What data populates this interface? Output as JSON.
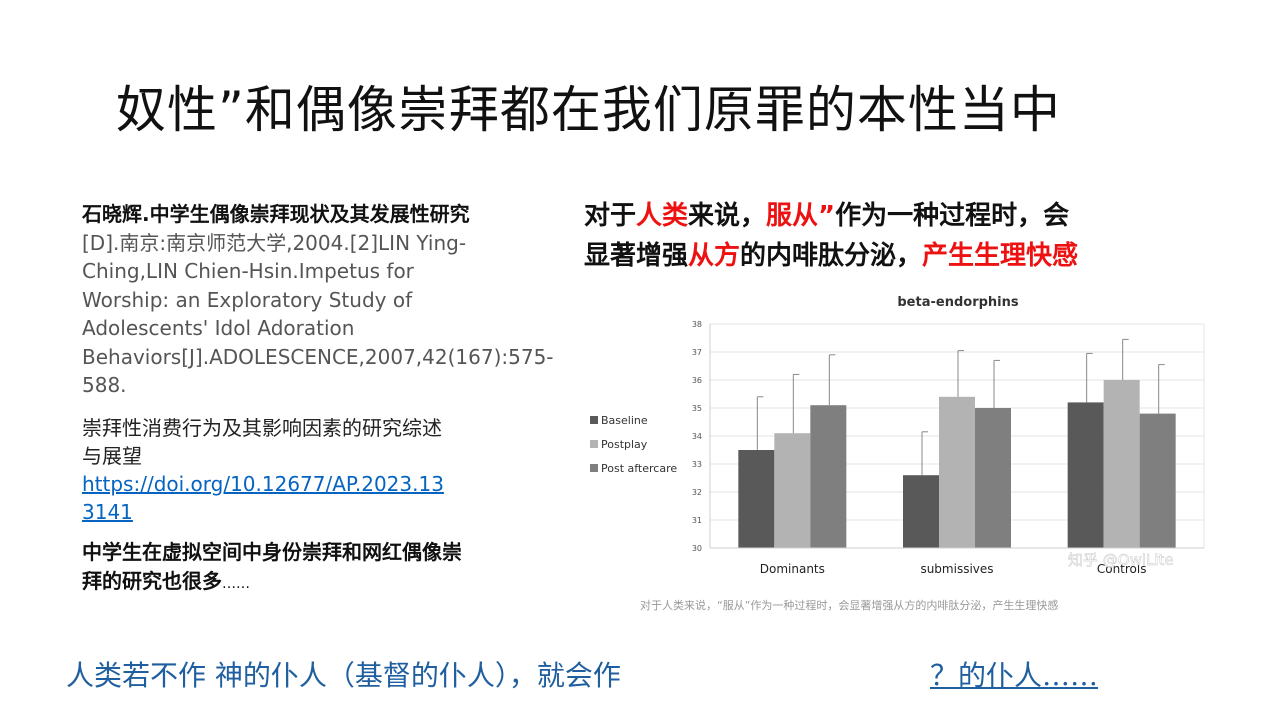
{
  "title": "奴性”和偶像崇拜都在我们原罪的本性当中",
  "references": {
    "ref1_bold": "石晓辉.中学生偶像崇拜现状及其发展性研究",
    "ref1_rest": "[D].南京:南京师范大学,2004.[2]LIN Ying-Ching,LIN Chien-Hsin.Impetus for Worship: an Exploratory Study of Adolescents' Idol Adoration Behaviors[J].ADOLESCENCE,2007,42(167):575-588.",
    "ref2_text": "崇拜性消费行为及其影响因素的研究综述与展望",
    "ref2_link": "https://doi.org/10.12677/AP.2023.133141",
    "ref3_text": "中学生在虚拟空间中身份崇拜和网红偶像崇拜的研究也很多",
    "ref3_dots": "……"
  },
  "headline": {
    "p1": "对于",
    "p2": "人类",
    "p3": "来说，",
    "p4": "服从”",
    "p5": "作为一种过程时，会",
    "p6": "显著增强",
    "p7": "从方",
    "p8": "的内啡肽分泌，",
    "p9": "产生生理快感"
  },
  "chart_caption": "对于人类来说，“服从”作为一种过程时，会显著增强从方的内啡肽分泌，产生生理快感",
  "watermark": "知乎 @OwlLite",
  "bottom": {
    "left_text": "人类若不作 神的仆人（基督的仆人），就会作",
    "q_mark": "？",
    "right_text": "的仆人……"
  },
  "chart_data": {
    "type": "bar",
    "title": "beta-endorphins",
    "categories": [
      "Dominants",
      "submissives",
      "Controls"
    ],
    "series": [
      {
        "name": "Baseline",
        "values": [
          33.5,
          32.6,
          35.2
        ],
        "errors": [
          1.9,
          1.55,
          1.75
        ],
        "color": "#595959"
      },
      {
        "name": "Postplay",
        "values": [
          34.1,
          35.4,
          36.0
        ],
        "errors": [
          2.1,
          1.65,
          1.45
        ],
        "color": "#b3b3b3"
      },
      {
        "name": "Post aftercare",
        "values": [
          35.1,
          35.0,
          34.8
        ],
        "errors": [
          1.8,
          1.7,
          1.75
        ],
        "color": "#7f7f7f"
      }
    ],
    "ylim": [
      30,
      38
    ],
    "yticks": [
      30,
      31,
      32,
      33,
      34,
      35,
      36,
      37,
      38
    ],
    "xlabel": "",
    "ylabel": "",
    "legend": "left"
  }
}
